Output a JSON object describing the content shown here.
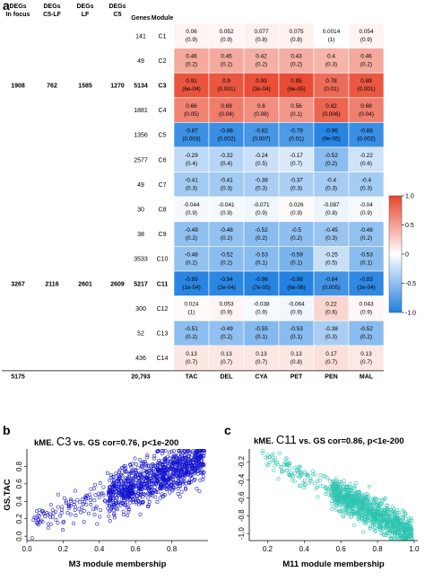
{
  "chart_data": [
    {
      "type": "heatmap",
      "panel_label": "a",
      "left_columns": {
        "headers": [
          [
            "DEGs",
            "In focus"
          ],
          [
            "DEGs",
            "C5-LF"
          ],
          [
            "DEGs",
            "LF"
          ],
          [
            "DEGs",
            "C5"
          ]
        ],
        "row_values": [
          [
            "1908",
            "762",
            "1585",
            "1270"
          ],
          [
            "3267",
            "2116",
            "2601",
            "2609"
          ]
        ],
        "row_modules": [
          "C3",
          "C11"
        ],
        "total": "5175"
      },
      "genes_header": "Genes",
      "module_header": "Module",
      "genes_total": "20,793",
      "columns": [
        "TAC",
        "DEL",
        "CYA",
        "PET",
        "PEN",
        "MAL"
      ],
      "rows": [
        {
          "module": "C1",
          "genes": "141",
          "cor": [
            "0.06",
            "0.052",
            "0.077",
            "0.075",
            "0.0014",
            "0.054"
          ],
          "p": [
            "(0.9)",
            "(0.9)",
            "(0.8)",
            "(0.8)",
            "(1)",
            "(0.9)"
          ],
          "values": [
            0.06,
            0.052,
            0.077,
            0.075,
            0.0014,
            0.054
          ]
        },
        {
          "module": "C2",
          "genes": "49",
          "cor": [
            "0.46",
            "0.45",
            "0.42",
            "0.43",
            "0.4",
            "0.46"
          ],
          "p": [
            "(0.2)",
            "(0.2)",
            "(0.2)",
            "(0.2)",
            "(0.3)",
            "(0.2)"
          ],
          "values": [
            0.46,
            0.45,
            0.42,
            0.43,
            0.4,
            0.46
          ]
        },
        {
          "module": "C3",
          "genes": "5134",
          "cor": [
            "0.91",
            "0.9",
            "0.93",
            "0.95",
            "0.78",
            "0.89"
          ],
          "p": [
            "(6e-04)",
            "(0.001)",
            "(3e-04)",
            "(6e-05)",
            "(0.01)",
            "(0.001)"
          ],
          "values": [
            0.91,
            0.9,
            0.93,
            0.95,
            0.78,
            0.89
          ]
        },
        {
          "module": "C4",
          "genes": "1881",
          "cor": [
            "0.66",
            "0.69",
            "0.6",
            "0.56",
            "0.82",
            "0.68"
          ],
          "p": [
            "(0.05)",
            "(0.04)",
            "(0.08)",
            "(0.1)",
            "(0.006)",
            "(0.04)"
          ],
          "values": [
            0.66,
            0.69,
            0.6,
            0.56,
            0.82,
            0.68
          ]
        },
        {
          "module": "C5",
          "genes": "1356",
          "cor": [
            "-0.87",
            "-0.88",
            "-0.82",
            "-0.79",
            "-0.96",
            "-0.88"
          ],
          "p": [
            "(0.003)",
            "(0.002)",
            "(0.007)",
            "(0.01)",
            "(9e-05)",
            "(0.002)"
          ],
          "values": [
            -0.87,
            -0.88,
            -0.82,
            -0.79,
            -0.96,
            -0.88
          ]
        },
        {
          "module": "C6",
          "genes": "2577",
          "cor": [
            "-0.29",
            "-0.32",
            "-0.24",
            "-0.17",
            "-0.52",
            "-0.22"
          ],
          "p": [
            "(0.4)",
            "(0.4)",
            "(0.5)",
            "(0.7)",
            "(0.2)",
            "(0.6)"
          ],
          "values": [
            -0.29,
            -0.32,
            -0.24,
            -0.17,
            -0.52,
            -0.22
          ]
        },
        {
          "module": "C7",
          "genes": "49",
          "cor": [
            "-0.41",
            "-0.41",
            "-0.38",
            "-0.37",
            "-0.4",
            "-0.4"
          ],
          "p": [
            "(0.3)",
            "(0.3)",
            "(0.3)",
            "(0.3)",
            "(0.3)",
            "(0.3)"
          ],
          "values": [
            -0.41,
            -0.41,
            -0.38,
            -0.37,
            -0.4,
            -0.4
          ]
        },
        {
          "module": "C8",
          "genes": "30",
          "cor": [
            "-0.044",
            "-0.041",
            "-0.071",
            "0.026",
            "-0.087",
            "-0.04"
          ],
          "p": [
            "(0.9)",
            "(0.9)",
            "(0.9)",
            "(0.9)",
            "(0.8)",
            "(0.9)"
          ],
          "values": [
            -0.044,
            -0.041,
            -0.071,
            0.026,
            -0.087,
            -0.04
          ]
        },
        {
          "module": "C9",
          "genes": "38",
          "cor": [
            "-0.49",
            "-0.48",
            "-0.52",
            "-0.5",
            "-0.45",
            "-0.48"
          ],
          "p": [
            "(0.2)",
            "(0.2)",
            "(0.2)",
            "(0.2)",
            "(0.3)",
            "(0.2)"
          ],
          "values": [
            -0.49,
            -0.48,
            -0.52,
            -0.5,
            -0.45,
            -0.48
          ]
        },
        {
          "module": "C10",
          "genes": "3533",
          "cor": [
            "-0.48",
            "-0.52",
            "-0.53",
            "-0.59",
            "-0.25",
            "-0.53"
          ],
          "p": [
            "(0.2)",
            "(0.2)",
            "(0.1)",
            "(0.1)",
            "(0.5)",
            "(0.1)"
          ],
          "values": [
            -0.48,
            -0.52,
            -0.53,
            -0.59,
            -0.25,
            -0.53
          ]
        },
        {
          "module": "C11",
          "genes": "5217",
          "cor": [
            "-0.95",
            "-0.94",
            "-0.96",
            "-0.98",
            "-0.84",
            "-0.93"
          ],
          "p": [
            "(1e-04)",
            "(2e-04)",
            "(7e-05)",
            "(6e-06)",
            "(0.005)",
            "(3e-04)"
          ],
          "values": [
            -0.95,
            -0.94,
            -0.96,
            -0.98,
            -0.84,
            -0.93
          ]
        },
        {
          "module": "C12",
          "genes": "300",
          "cor": [
            "0.024",
            "0.053",
            "-0.038",
            "-0.064",
            "0.22",
            "0.043"
          ],
          "p": [
            "(1)",
            "(0.9)",
            "(0.9)",
            "(0.9)",
            "(0.6)",
            "(0.9)"
          ],
          "values": [
            0.024,
            0.053,
            -0.038,
            -0.064,
            0.22,
            0.043
          ]
        },
        {
          "module": "C13",
          "genes": "52",
          "cor": [
            "-0.51",
            "-0.49",
            "-0.55",
            "-0.53",
            "-0.38",
            "-0.52"
          ],
          "p": [
            "(0.2)",
            "(0.2)",
            "(0.1)",
            "(0.1)",
            "(0.3)",
            "(0.2)"
          ],
          "values": [
            -0.51,
            -0.49,
            -0.55,
            -0.53,
            -0.38,
            -0.52
          ]
        },
        {
          "module": "C14",
          "genes": "436",
          "cor": [
            "0.13",
            "0.13",
            "0.13",
            "0.13",
            "0.17",
            "0.13"
          ],
          "p": [
            "(0.7)",
            "(0.7)",
            "(0.7)",
            "(0.8)",
            "(0.7)",
            "(0.7)"
          ],
          "values": [
            0.13,
            0.13,
            0.13,
            0.13,
            0.17,
            0.13
          ]
        }
      ],
      "colorbar": {
        "ticks": [
          "1.0",
          "0.5",
          "0",
          "-0.5",
          "-1.0"
        ],
        "tick_values": [
          1,
          0.5,
          0,
          -0.5,
          -1
        ],
        "range": [
          -1,
          1
        ]
      },
      "colors": {
        "positive": "#e8432a",
        "negative": "#1f7fe0",
        "neutral": "#ffffff"
      }
    },
    {
      "type": "scatter",
      "panel_label": "b",
      "title_prefix": "kME.",
      "title_module": "C3",
      "title_suffix": "vs. GS cor=0.76, p<1e-200",
      "xlabel": "M3 module membership",
      "ylabel": "GS.TAC",
      "xlim": [
        0,
        1.0
      ],
      "ylim": [
        -0.05,
        1.0
      ],
      "xticks": [
        0.0,
        0.2,
        0.4,
        0.6,
        0.8
      ],
      "xtick_labels": [
        "0.0",
        "0.2",
        "0.4",
        "0.6",
        "0.8"
      ],
      "yticks": [
        0.0,
        0.2,
        0.4,
        0.6,
        0.8
      ],
      "ytick_labels": [
        "0.0",
        "0.2",
        "0.4",
        "0.6",
        "0.8"
      ],
      "color": "#1111cc",
      "trend": {
        "x_range": [
          0.02,
          0.98
        ],
        "slope": 0.78,
        "intercept": 0.12,
        "dense_x": [
          0.45,
          0.98
        ],
        "spread": 0.09
      }
    },
    {
      "type": "scatter",
      "panel_label": "c",
      "title_prefix": "kME.",
      "title_module": "C11",
      "title_suffix": "vs. GS cor=0.86, p<1e-200",
      "xlabel": "M11 module membership",
      "ylabel": "",
      "xlim": [
        0.1,
        1.02
      ],
      "ylim": [
        -1.08,
        -0.05
      ],
      "xticks": [
        0.2,
        0.4,
        0.6,
        0.8,
        1.0
      ],
      "xtick_labels": [
        "0.2",
        "0.4",
        "0.6",
        "0.8",
        "1.0"
      ],
      "yticks": [
        -0.2,
        -0.4,
        -0.6,
        -0.8,
        -1.0
      ],
      "ytick_labels": [
        "-0.2",
        "-0.4",
        "-0.6",
        "-0.8",
        "-1.0"
      ],
      "color": "#2ec4b0",
      "trend": {
        "x_range": [
          0.17,
          0.99
        ],
        "slope": -1.04,
        "intercept": 0.04,
        "dense_x": [
          0.55,
          0.99
        ],
        "spread": 0.06
      }
    }
  ]
}
